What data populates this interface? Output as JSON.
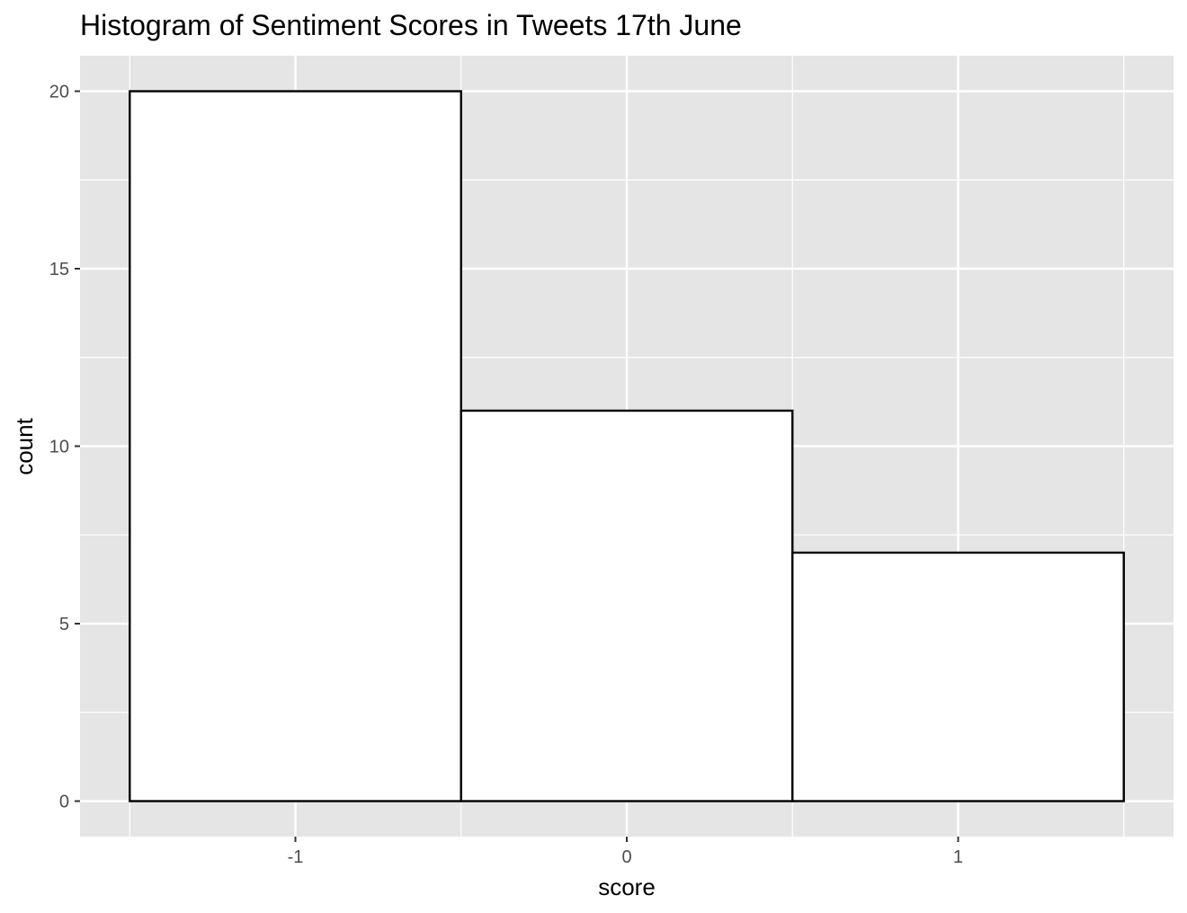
{
  "chart_data": {
    "type": "bar",
    "title": "Histogram of Sentiment Scores in Tweets 17th June",
    "xlabel": "score",
    "ylabel": "count",
    "bins": [
      {
        "x_start": -1.5,
        "x_end": -0.5,
        "center": -1,
        "count": 20
      },
      {
        "x_start": -0.5,
        "x_end": 0.5,
        "center": 0,
        "count": 11
      },
      {
        "x_start": 0.5,
        "x_end": 1.5,
        "center": 1,
        "count": 7
      }
    ],
    "x_ticks": [
      -1,
      0,
      1
    ],
    "x_tick_labels": [
      "-1",
      "0",
      "1"
    ],
    "y_ticks": [
      0,
      5,
      10,
      15,
      20
    ],
    "y_tick_labels": [
      "0",
      "5",
      "10",
      "15",
      "20"
    ],
    "xlim": [
      -1.65,
      1.65
    ],
    "ylim": [
      -1,
      21
    ],
    "grid": true,
    "colors": {
      "panel_background": "#e5e5e5",
      "grid": "#ffffff",
      "bar_fill": "#ffffff",
      "bar_outline": "#000000",
      "tick_text": "#4d4d4d",
      "tick_mark": "#333333"
    }
  }
}
